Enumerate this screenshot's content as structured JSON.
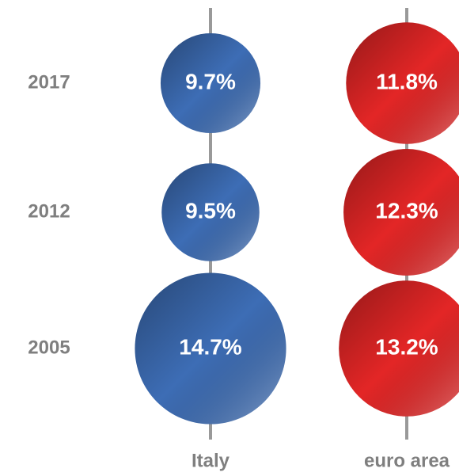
{
  "chart_data": {
    "type": "bubble",
    "categories": [
      "2017",
      "2012",
      "2005"
    ],
    "series": [
      {
        "name": "Italy",
        "color": "#3d6db5",
        "values": [
          9.7,
          9.5,
          14.7
        ],
        "value_labels": [
          "9.7%",
          "9.5%",
          "14.7%"
        ]
      },
      {
        "name": "euro area",
        "color": "#e32626",
        "values": [
          11.8,
          12.3,
          13.2
        ],
        "value_labels": [
          "11.8%",
          "12.3%",
          "13.2%"
        ]
      }
    ]
  }
}
